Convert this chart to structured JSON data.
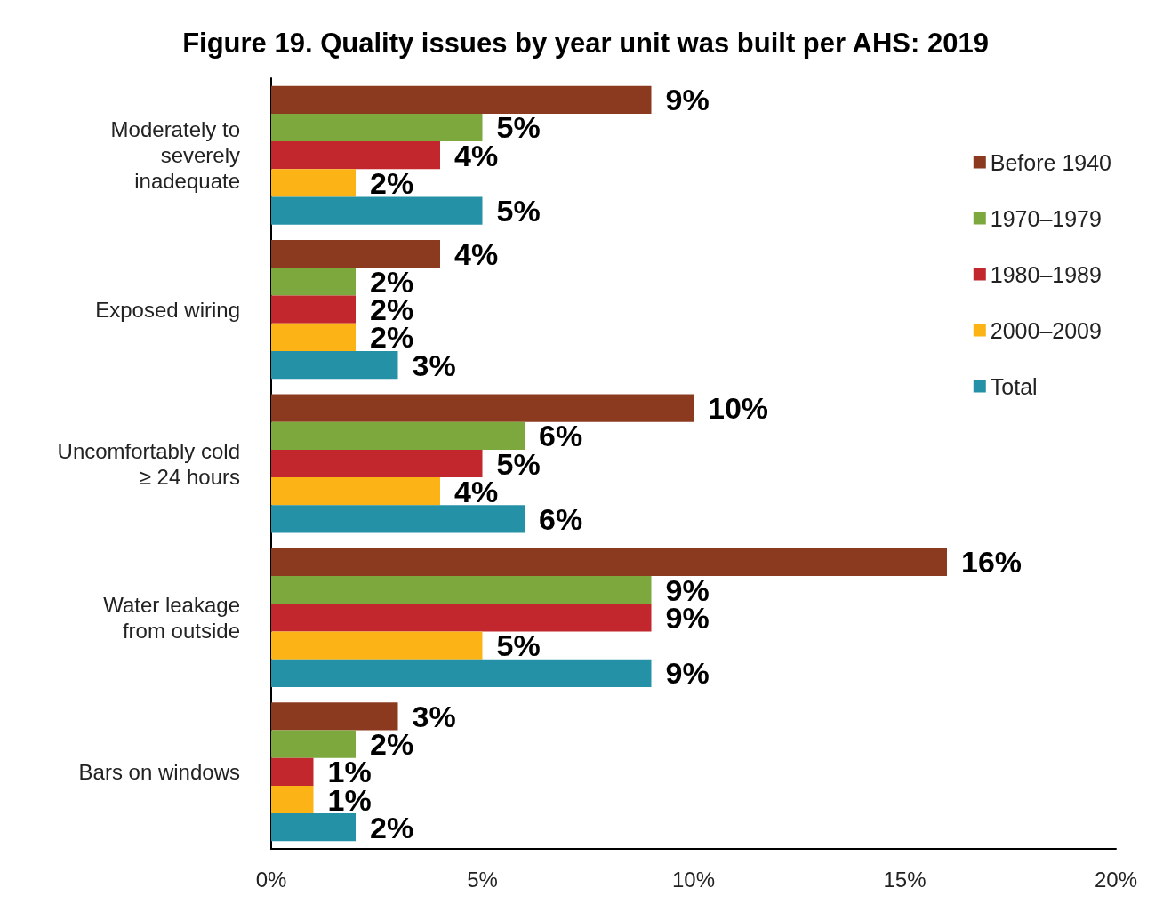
{
  "chart_data": {
    "type": "bar",
    "orientation": "horizontal",
    "title": "Figure 19. Quality issues by year unit was built per AHS: 2019",
    "categories": [
      "Moderately to\nseverely\ninadequate",
      "Exposed wiring",
      "Uncomfortably cold\n≥ 24 hours",
      "Water leakage\nfrom outside",
      "Bars on windows"
    ],
    "series": [
      {
        "name": "Before 1940",
        "color": "#8b3a1f",
        "values": [
          9,
          4,
          10,
          16,
          3
        ],
        "value_labels": [
          "9%",
          "4%",
          "10%",
          "16%",
          "3%"
        ]
      },
      {
        "name": "1970–1979",
        "color": "#7da83e",
        "values": [
          5,
          2,
          6,
          9,
          2
        ],
        "value_labels": [
          "5%",
          "2%",
          "6%",
          "9%",
          "2%"
        ]
      },
      {
        "name": "1980–1989",
        "color": "#c1272d",
        "values": [
          4,
          2,
          5,
          9,
          1
        ],
        "value_labels": [
          "4%",
          "2%",
          "5%",
          "9%",
          "1%"
        ]
      },
      {
        "name": "2000–2009",
        "color": "#fbb316",
        "values": [
          2,
          2,
          4,
          5,
          1
        ],
        "value_labels": [
          "2%",
          "2%",
          "4%",
          "5%",
          "1%"
        ]
      },
      {
        "name": "Total",
        "color": "#2591a6",
        "values": [
          5,
          3,
          6,
          9,
          2
        ],
        "value_labels": [
          "5%",
          "3%",
          "6%",
          "9%",
          "2%"
        ]
      }
    ],
    "xlim": [
      0,
      20
    ],
    "xticks": [
      {
        "value": 0,
        "label": "0%"
      },
      {
        "value": 5,
        "label": "5%"
      },
      {
        "value": 10,
        "label": "10%"
      },
      {
        "value": 15,
        "label": "15%"
      },
      {
        "value": 20,
        "label": "20%"
      }
    ],
    "grid": false,
    "legend": "right"
  }
}
